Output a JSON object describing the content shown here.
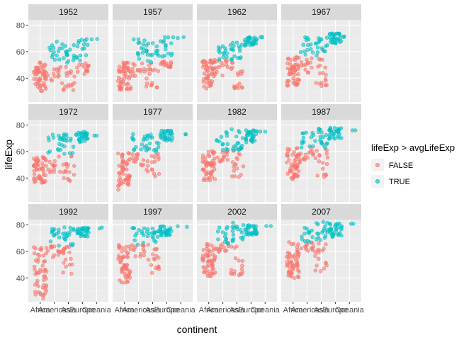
{
  "chart_data": {
    "type": "scatter",
    "xlabel": "continent",
    "ylabel": "lifeExp",
    "x_categories": [
      "Africa",
      "Americas",
      "Asia",
      "Europe",
      "Oceania"
    ],
    "y_ticks": [
      40,
      60,
      80
    ],
    "ylim": [
      22,
      84
    ],
    "grid": true,
    "legend": {
      "title": "lifeExp > avgLifeExp",
      "position": "right",
      "entries": [
        {
          "label": "FALSE",
          "color": "#F8766D"
        },
        {
          "label": "TRUE",
          "color": "#00BFC4"
        }
      ]
    },
    "facets": [
      {
        "year": "1952",
        "ranges": [
          [
            [
              30,
              52
            ]
          ],
          [
            [
              38,
              51
            ],
            [
              52,
              68
            ]
          ],
          [
            [
              29,
              50
            ],
            [
              51,
              66
            ]
          ],
          [
            [
              43,
              52
            ],
            [
              52,
              73
            ]
          ],
          [
            [
              69,
              70
            ]
          ]
        ]
      },
      {
        "year": "1957",
        "ranges": [
          [
            [
              31,
              52
            ]
          ],
          [
            [
              41,
              52
            ],
            [
              52,
              70
            ]
          ],
          [
            [
              30,
              52
            ],
            [
              52,
              67
            ]
          ],
          [
            [
              48,
              53
            ],
            [
              53,
              73
            ]
          ],
          [
            [
              70,
              71
            ]
          ]
        ]
      },
      {
        "year": "1962",
        "ranges": [
          [
            [
              32,
              54
            ]
          ],
          [
            [
              42,
              54
            ],
            [
              54,
              71
            ]
          ],
          [
            [
              32,
              54
            ],
            [
              54,
              69
            ]
          ],
          [
            [
              64,
              71
            ]
          ],
          [
            [
              71,
              71
            ]
          ]
        ]
      },
      {
        "year": "1967",
        "ranges": [
          [
            [
              34,
              56
            ]
          ],
          [
            [
              44,
              56
            ],
            [
              56,
              72
            ]
          ],
          [
            [
              34,
              56
            ],
            [
              56,
              71
            ]
          ],
          [
            [
              66,
              74
            ]
          ],
          [
            [
              71,
              72
            ]
          ]
        ]
      },
      {
        "year": "1972",
        "ranges": [
          [
            [
              36,
              57
            ]
          ],
          [
            [
              44,
              57
            ],
            [
              57,
              73
            ]
          ],
          [
            [
              36,
              57
            ],
            [
              57,
              73
            ]
          ],
          [
            [
              67,
              75
            ]
          ],
          [
            [
              72,
              72
            ]
          ]
        ]
      },
      {
        "year": "1977",
        "ranges": [
          [
            [
              31,
              59
            ]
          ],
          [
            [
              49,
              59
            ],
            [
              59,
              74
            ]
          ],
          [
            [
              40,
              59
            ],
            [
              59,
              75
            ]
          ],
          [
            [
              68,
              76
            ]
          ],
          [
            [
              73,
              73
            ]
          ]
        ]
      },
      {
        "year": "1982",
        "ranges": [
          [
            [
              38,
              61
            ]
          ],
          [
            [
              51,
              61
            ],
            [
              61,
              75
            ]
          ],
          [
            [
              39,
              61
            ],
            [
              61,
              77
            ]
          ],
          [
            [
              67,
              77
            ]
          ],
          [
            [
              75,
              75
            ]
          ]
        ]
      },
      {
        "year": "1987",
        "ranges": [
          [
            [
              39,
              63
            ]
          ],
          [
            [
              53,
              63
            ],
            [
              63,
              76
            ]
          ],
          [
            [
              40,
              63
            ],
            [
              63,
              78
            ]
          ],
          [
            [
              69,
              78
            ]
          ],
          [
            [
              76,
              76
            ]
          ]
        ]
      },
      {
        "year": "1992",
        "ranges": [
          [
            [
              24,
              64
            ]
          ],
          [
            [
              55,
              64
            ],
            [
              64,
              77
            ]
          ],
          [
            [
              41,
              64
            ],
            [
              64,
              79
            ]
          ],
          [
            [
              71,
              78
            ]
          ],
          [
            [
              77,
              78
            ]
          ]
        ]
      },
      {
        "year": "1997",
        "ranges": [
          [
            [
              36,
              65
            ]
          ],
          [
            [
              56,
              65
            ],
            [
              65,
              78
            ]
          ],
          [
            [
              42,
              65
            ],
            [
              65,
              80
            ]
          ],
          [
            [
              72,
              79
            ]
          ],
          [
            [
              78,
              79
            ]
          ]
        ]
      },
      {
        "year": "2002",
        "ranges": [
          [
            [
              39,
              66
            ]
          ],
          [
            [
              58,
              66
            ],
            [
              66,
              79
            ]
          ],
          [
            [
              42,
              66
            ],
            [
              66,
              82
            ]
          ],
          [
            [
              72,
              80
            ]
          ],
          [
            [
              79,
              80
            ]
          ]
        ]
      },
      {
        "year": "2007",
        "ranges": [
          [
            [
              39,
              67
            ]
          ],
          [
            [
              60,
              67
            ],
            [
              67,
              80
            ]
          ],
          [
            [
              43,
              67
            ],
            [
              67,
              83
            ]
          ],
          [
            [
              71,
              81
            ]
          ],
          [
            [
              80,
              81
            ]
          ]
        ]
      }
    ]
  }
}
